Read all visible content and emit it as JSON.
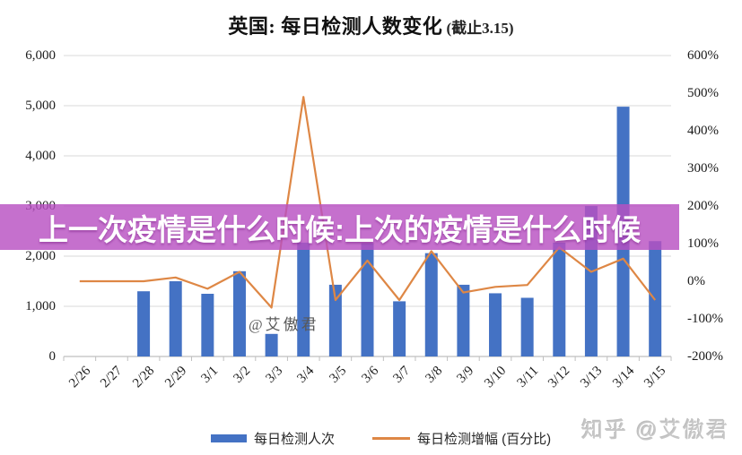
{
  "title": {
    "main": "英国: 每日检测人数变化",
    "suffix": " (截止3.15)"
  },
  "banner": {
    "text": "上一次疫情是什么时候:上次的疫情是什么时候",
    "bg": "#BC50C2"
  },
  "watermarks": {
    "in_chart": "@艾傲君",
    "bottom_right": "知乎 @艾傲君"
  },
  "legend": [
    {
      "label": "每日检测人次",
      "type": "bar"
    },
    {
      "label": "每日检测增幅 (百分比)",
      "type": "line"
    }
  ],
  "colors": {
    "bar": "#4472C4",
    "line": "#DE8745",
    "grid": "#D9D9D9",
    "axisline": "#BFBFBF"
  },
  "chart_data": {
    "type": "bar",
    "subtype": "combo bar+line, dual axis",
    "title": "英国: 每日检测人数变化 (截止3.15)",
    "categories": [
      "2/26",
      "2/27",
      "2/28",
      "2/29",
      "3/1",
      "3/2",
      "3/3",
      "3/4",
      "3/5",
      "3/6",
      "3/7",
      "3/8",
      "3/9",
      "3/10",
      "3/11",
      "3/12",
      "3/13",
      "3/14",
      "3/15"
    ],
    "series": [
      {
        "name": "每日检测人次",
        "type": "bar",
        "axis": "left",
        "values": [
          null,
          null,
          1300,
          1500,
          1250,
          1700,
          450,
          2270,
          1430,
          2260,
          1100,
          2060,
          1430,
          1260,
          1170,
          2270,
          3000,
          4980,
          2300
        ]
      },
      {
        "name": "每日检测增幅 (百分比)",
        "type": "line",
        "axis": "right",
        "values": [
          0,
          0,
          0,
          10,
          -20,
          25,
          -70,
          490,
          -50,
          55,
          -50,
          80,
          -30,
          -15,
          -10,
          90,
          25,
          60,
          -50
        ]
      }
    ],
    "left_axis": {
      "ticks": [
        "6,000",
        "5,000",
        "4,000",
        "3,000",
        "2,000",
        "1,000",
        "0"
      ],
      "min": 0,
      "max": 6000
    },
    "right_axis": {
      "ticks": [
        "600%",
        "500%",
        "400%",
        "300%",
        "200%",
        "100%",
        "0%",
        "-100%",
        "-200%"
      ],
      "min": -200,
      "max": 600
    },
    "grid": "horizontal only",
    "legend_position": "bottom"
  }
}
